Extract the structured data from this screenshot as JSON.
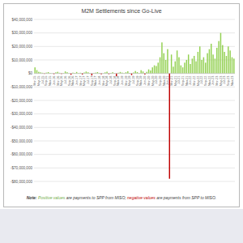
{
  "chart_data": {
    "type": "bar",
    "title": "M2M Settlements since Go-Live",
    "note": [
      "Note: ",
      "Positive values",
      " are payments to SPP from MISO; ",
      "negative values",
      " are payments from SPP to MISO."
    ],
    "categories": [
      "Mar-15",
      null,
      "May-15",
      null,
      "Jul-15",
      null,
      "Sep-15",
      null,
      "Nov-15",
      null,
      "Jan-16",
      null,
      "Mar-16",
      null,
      "May-16",
      null,
      "Jul-16",
      null,
      "Sep-16",
      null,
      "Nov-16",
      null,
      "Jan-17",
      null,
      "Mar-17",
      null,
      "May-17",
      null,
      "Jul-17",
      null,
      "Sep-17",
      null,
      "Nov-17",
      null,
      "Jan-18",
      null,
      "Mar-18",
      null,
      "May-18",
      null,
      "Jul-18",
      null,
      "Sep-18",
      null,
      "Nov-18",
      null,
      "Jan-19",
      null,
      "Mar-19",
      null,
      "May-19",
      null,
      "Jul-19",
      null,
      "Sep-19",
      null,
      "Nov-19",
      null,
      "Jan-20",
      null,
      "Mar-20",
      null,
      "May-20",
      null,
      "Jul-20",
      null,
      "Sep-20",
      null,
      "Nov-20",
      null,
      "Jan-21",
      null,
      "Mar-21",
      null,
      "May-21",
      null,
      "Jul-21",
      null,
      "Sep-21",
      null,
      "Nov-21",
      null,
      "Jan-22",
      null,
      "Mar-22",
      null,
      "May-22",
      null,
      "Jul-22",
      null,
      "Sep-22",
      null,
      "Nov-22",
      null,
      "Jan-23",
      null,
      "Mar-23",
      null,
      "May-23",
      null,
      "Jul-23",
      null,
      "Sep-23",
      null,
      "Nov-23",
      null
    ],
    "values": [
      4500000,
      2500000,
      1200000,
      800000,
      500000,
      -300000,
      600000,
      1000000,
      400000,
      200000,
      -500000,
      800000,
      1200000,
      500000,
      -400000,
      300000,
      1500000,
      900000,
      200000,
      -1000000,
      600000,
      400000,
      1100000,
      300000,
      500000,
      -800000,
      700000,
      1400000,
      900000,
      200000,
      -1500000,
      300000,
      600000,
      1000000,
      400000,
      -600000,
      200000,
      800000,
      1300000,
      -500000,
      400000,
      900000,
      300000,
      -2000000,
      500000,
      1100000,
      600000,
      200000,
      900000,
      1600000,
      400000,
      -1200000,
      700000,
      1800000,
      1000000,
      300000,
      2400000,
      1500000,
      -800000,
      1200000,
      3000000,
      2200000,
      4500000,
      6000000,
      5500000,
      8000000,
      12000000,
      23000000,
      15000000,
      10000000,
      18000000,
      -78000000,
      14000000,
      5000000,
      9000000,
      17000000,
      12000000,
      6000000,
      4500000,
      8000000,
      10000000,
      14000000,
      7000000,
      11000000,
      13000000,
      9000000,
      16000000,
      20000000,
      10000000,
      12000000,
      8000000,
      15000000,
      18000000,
      22000000,
      14000000,
      11000000,
      19000000,
      24000000,
      30000000,
      21000000,
      16000000,
      13000000,
      20000000,
      17000000,
      12000000,
      11000000
    ],
    "colors": [
      "#92d050",
      "#92d050",
      "#92d050",
      "#92d050",
      "#92d050",
      "#c00000",
      "#92d050",
      "#92d050",
      "#92d050",
      "#92d050",
      "#c00000",
      "#92d050",
      "#92d050",
      "#92d050",
      "#c00000",
      "#92d050",
      "#92d050",
      "#92d050",
      "#92d050",
      "#c00000",
      "#92d050",
      "#92d050",
      "#92d050",
      "#92d050",
      "#92d050",
      "#c00000",
      "#92d050",
      "#92d050",
      "#92d050",
      "#92d050",
      "#c00000",
      "#92d050",
      "#92d050",
      "#92d050",
      "#92d050",
      "#c00000",
      "#92d050",
      "#92d050",
      "#92d050",
      "#c00000",
      "#92d050",
      "#92d050",
      "#92d050",
      "#c00000",
      "#92d050",
      "#92d050",
      "#92d050",
      "#92d050",
      "#92d050",
      "#92d050",
      "#92d050",
      "#c00000",
      "#92d050",
      "#92d050",
      "#92d050",
      "#92d050",
      "#92d050",
      "#92d050",
      "#c00000",
      "#92d050",
      "#92d050",
      "#92d050",
      "#92d050",
      "#92d050",
      "#92d050",
      "#92d050",
      "#92d050",
      "#92d050",
      "#92d050",
      "#92d050",
      "#92d050",
      "#c00000",
      "#92d050",
      "#92d050",
      "#92d050",
      "#92d050",
      "#92d050",
      "#92d050",
      "#92d050",
      "#92d050",
      "#92d050",
      "#92d050",
      "#92d050",
      "#92d050",
      "#92d050",
      "#92d050",
      "#92d050",
      "#92d050",
      "#92d050",
      "#92d050",
      "#92d050",
      "#92d050",
      "#92d050",
      "#92d050",
      "#92d050",
      "#92d050",
      "#92d050",
      "#92d050",
      "#92d050",
      "#92d050",
      "#92d050",
      "#92d050",
      "#92d050",
      "#92d050",
      "#92d050",
      "#92d050"
    ],
    "ylim": [
      -80000000,
      40000000
    ],
    "yticks": [
      {
        "value": 40000000,
        "label": "$40,000,000"
      },
      {
        "value": 30000000,
        "label": "$30,000,000"
      },
      {
        "value": 20000000,
        "label": "$20,000,000"
      },
      {
        "value": 10000000,
        "label": "$10,000,000"
      },
      {
        "value": 0,
        "label": "$0"
      },
      {
        "value": -10000000,
        "label": "-$10,000,000"
      },
      {
        "value": -20000000,
        "label": "-$20,000,000"
      },
      {
        "value": -30000000,
        "label": "-$30,000,000"
      },
      {
        "value": -40000000,
        "label": "-$40,000,000"
      },
      {
        "value": -50000000,
        "label": "-$50,000,000"
      },
      {
        "value": -60000000,
        "label": "-$60,000,000"
      },
      {
        "value": -70000000,
        "label": "-$70,000,000"
      },
      {
        "value": -80000000,
        "label": "-$80,000,000"
      }
    ],
    "grid": true
  }
}
